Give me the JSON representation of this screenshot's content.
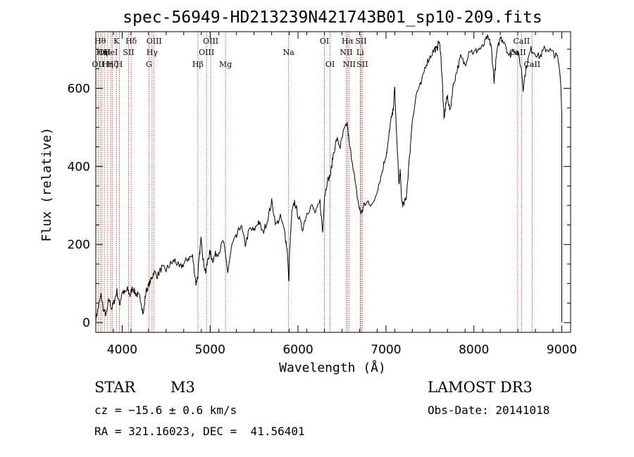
{
  "chart_data": {
    "type": "line",
    "title": "spec-56949-HD213239N421743B01_sp10-209.fits",
    "xlabel": "Wavelength (Å)",
    "ylabel": "Flux (relative)",
    "xlim": [
      3700,
      9100
    ],
    "ylim": [
      -25,
      745
    ],
    "xticks": [
      4000,
      5000,
      6000,
      7000,
      8000,
      9000
    ],
    "yticks": [
      0,
      200,
      400,
      600
    ],
    "line_color": "#000000",
    "marker_color": "#b03020",
    "spectrum": {
      "x": [
        3700,
        3730,
        3760,
        3790,
        3820,
        3850,
        3880,
        3910,
        3940,
        3970,
        4000,
        4030,
        4060,
        4090,
        4120,
        4150,
        4180,
        4210,
        4240,
        4270,
        4300,
        4330,
        4360,
        4400,
        4450,
        4500,
        4550,
        4600,
        4650,
        4700,
        4750,
        4800,
        4840,
        4860,
        4880,
        4900,
        4920,
        4950,
        4980,
        5000,
        5030,
        5060,
        5100,
        5150,
        5200,
        5250,
        5300,
        5350,
        5400,
        5450,
        5500,
        5550,
        5600,
        5650,
        5700,
        5750,
        5800,
        5850,
        5880,
        5895,
        5905,
        5930,
        5960,
        6000,
        6050,
        6100,
        6150,
        6200,
        6250,
        6280,
        6300,
        6330,
        6370,
        6400,
        6440,
        6480,
        6520,
        6560,
        6580,
        6620,
        6660,
        6700,
        6720,
        6750,
        6800,
        6850,
        6900,
        6950,
        7000,
        7020,
        7050,
        7080,
        7100,
        7120,
        7150,
        7160,
        7180,
        7200,
        7230,
        7260,
        7300,
        7350,
        7400,
        7450,
        7500,
        7550,
        7580,
        7600,
        7620,
        7640,
        7660,
        7680,
        7700,
        7730,
        7760,
        7800,
        7850,
        7900,
        7950,
        8000,
        8050,
        8100,
        8150,
        8180,
        8200,
        8230,
        8260,
        8300,
        8350,
        8400,
        8450,
        8500,
        8540,
        8560,
        8600,
        8650,
        8700,
        8750,
        8800,
        8850,
        8900,
        8950,
        8980,
        8990,
        9000
      ],
      "y": [
        10,
        40,
        70,
        30,
        20,
        60,
        35,
        55,
        80,
        45,
        80,
        75,
        85,
        70,
        90,
        75,
        70,
        60,
        20,
        80,
        95,
        110,
        130,
        120,
        140,
        135,
        150,
        160,
        140,
        150,
        165,
        170,
        100,
        120,
        175,
        220,
        160,
        130,
        165,
        180,
        160,
        175,
        180,
        210,
        130,
        200,
        220,
        250,
        200,
        240,
        235,
        260,
        230,
        260,
        310,
        250,
        270,
        230,
        180,
        100,
        185,
        280,
        310,
        275,
        240,
        280,
        300,
        280,
        310,
        230,
        320,
        360,
        380,
        430,
        470,
        450,
        490,
        510,
        460,
        410,
        340,
        290,
        280,
        300,
        310,
        300,
        340,
        380,
        430,
        450,
        510,
        540,
        600,
        480,
        350,
        390,
        310,
        300,
        320,
        400,
        520,
        590,
        610,
        660,
        680,
        700,
        700,
        720,
        700,
        620,
        520,
        560,
        580,
        540,
        600,
        640,
        680,
        660,
        700,
        690,
        700,
        705,
        730,
        720,
        700,
        620,
        690,
        730,
        720,
        680,
        700,
        690,
        650,
        600,
        660,
        700,
        690,
        680,
        700,
        700,
        690,
        680,
        640,
        600,
        540
      ]
    },
    "line_markers": [
      {
        "wl": 3727,
        "labels": [
          "OII"
        ],
        "rows": [
          2
        ]
      },
      {
        "wl": 3750,
        "labels": [
          "Hθ"
        ],
        "rows": [
          0
        ]
      },
      {
        "wl": 3770,
        "labels": [
          "Hη"
        ],
        "rows": [
          1
        ]
      },
      {
        "wl": 3798,
        "labels": [
          "OII"
        ],
        "rows": [
          1
        ]
      },
      {
        "wl": 3835,
        "labels": [
          "Hη"
        ],
        "rows": [
          2
        ]
      },
      {
        "wl": 3869,
        "labels": [
          "HeI"
        ],
        "rows": [
          1
        ]
      },
      {
        "wl": 3889,
        "labels": [
          "Hζ"
        ],
        "rows": [
          2
        ]
      },
      {
        "wl": 3934,
        "labels": [
          "K"
        ],
        "rows": [
          0
        ]
      },
      {
        "wl": 3969,
        "labels": [
          "H"
        ],
        "rows": [
          2
        ]
      },
      {
        "wl": 4072,
        "labels": [
          "SII"
        ],
        "rows": [
          1
        ]
      },
      {
        "wl": 4102,
        "labels": [
          "Hδ"
        ],
        "rows": [
          0
        ]
      },
      {
        "wl": 4304,
        "labels": [
          "G"
        ],
        "rows": [
          2
        ]
      },
      {
        "wl": 4340,
        "labels": [
          "Hγ"
        ],
        "rows": [
          1
        ]
      },
      {
        "wl": 4363,
        "labels": [
          "OIII"
        ],
        "rows": [
          0
        ]
      },
      {
        "wl": 4861,
        "labels": [
          "Hβ"
        ],
        "rows": [
          2
        ]
      },
      {
        "wl": 4959,
        "labels": [
          "OIII"
        ],
        "rows": [
          1
        ]
      },
      {
        "wl": 5007,
        "labels": [
          "OIII"
        ],
        "rows": [
          0
        ]
      },
      {
        "wl": 5175,
        "labels": [
          "Mg"
        ],
        "rows": [
          2
        ]
      },
      {
        "wl": 5893,
        "labels": [
          "Na"
        ],
        "rows": [
          1
        ]
      },
      {
        "wl": 6300,
        "labels": [
          "OI"
        ],
        "rows": [
          0
        ]
      },
      {
        "wl": 6364,
        "labels": [
          "OI"
        ],
        "rows": [
          2
        ]
      },
      {
        "wl": 6548,
        "labels": [
          "NII"
        ],
        "rows": [
          1
        ]
      },
      {
        "wl": 6563,
        "labels": [
          "Hα"
        ],
        "rows": [
          0
        ]
      },
      {
        "wl": 6583,
        "labels": [
          "NII"
        ],
        "rows": [
          2
        ]
      },
      {
        "wl": 6707,
        "labels": [
          "Li"
        ],
        "rows": [
          1
        ]
      },
      {
        "wl": 6716,
        "labels": [
          "SII"
        ],
        "rows": [
          0
        ]
      },
      {
        "wl": 6731,
        "labels": [
          "SII"
        ],
        "rows": [
          2
        ]
      },
      {
        "wl": 8498,
        "labels": [
          "CaII"
        ],
        "rows": [
          1
        ]
      },
      {
        "wl": 8542,
        "labels": [
          "CaII"
        ],
        "rows": [
          0
        ]
      },
      {
        "wl": 8662,
        "labels": [
          "CaII"
        ],
        "rows": [
          2
        ]
      }
    ]
  },
  "info": {
    "object_class": "STAR",
    "subclass": "M3",
    "cz": "cz = −15.6 ± 0.6 km/s",
    "radec": "RA = 321.16023, DEC =  41.56401",
    "survey": "LAMOST DR3",
    "obs_date": "Obs-Date: 20141018"
  }
}
